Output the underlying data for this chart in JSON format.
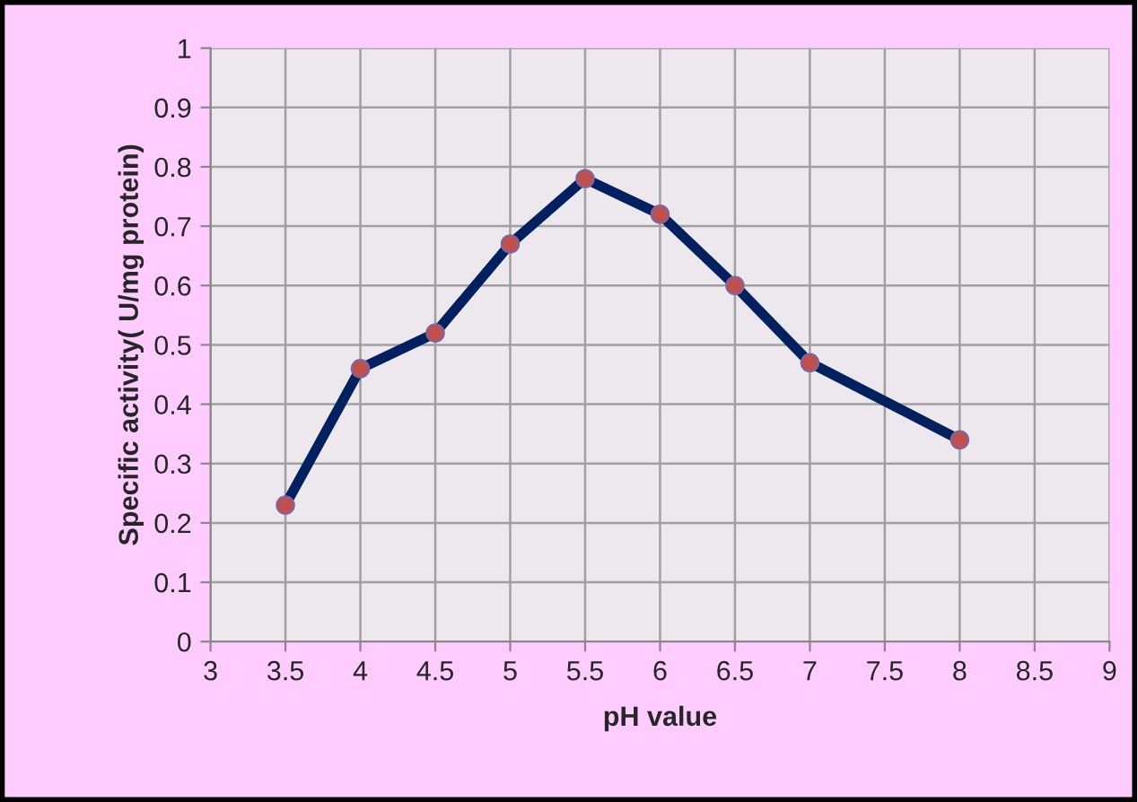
{
  "chart_data": {
    "type": "line",
    "xlabel": "pH value",
    "ylabel": "Specific activity( U/mg protein)",
    "x": [
      3.5,
      4,
      4.5,
      5,
      5.5,
      6,
      6.5,
      7,
      8
    ],
    "series": [
      {
        "color": "#002060",
        "values": [
          0.23,
          0.46,
          0.52,
          0.67,
          0.78,
          0.72,
          0.6,
          0.47,
          0.34
        ]
      }
    ],
    "xlim": [
      3,
      9
    ],
    "xticks": [
      3,
      3.5,
      4,
      4.5,
      5,
      5.5,
      6,
      6.5,
      7,
      7.5,
      8,
      8.5,
      9
    ],
    "ylim": [
      0,
      1
    ],
    "yticks": [
      0,
      0.1,
      0.2,
      0.3,
      0.4,
      0.5,
      0.6,
      0.7,
      0.8,
      0.9,
      1
    ],
    "grid": true,
    "marker": "circle",
    "line_style": "solid",
    "legend": false
  }
}
